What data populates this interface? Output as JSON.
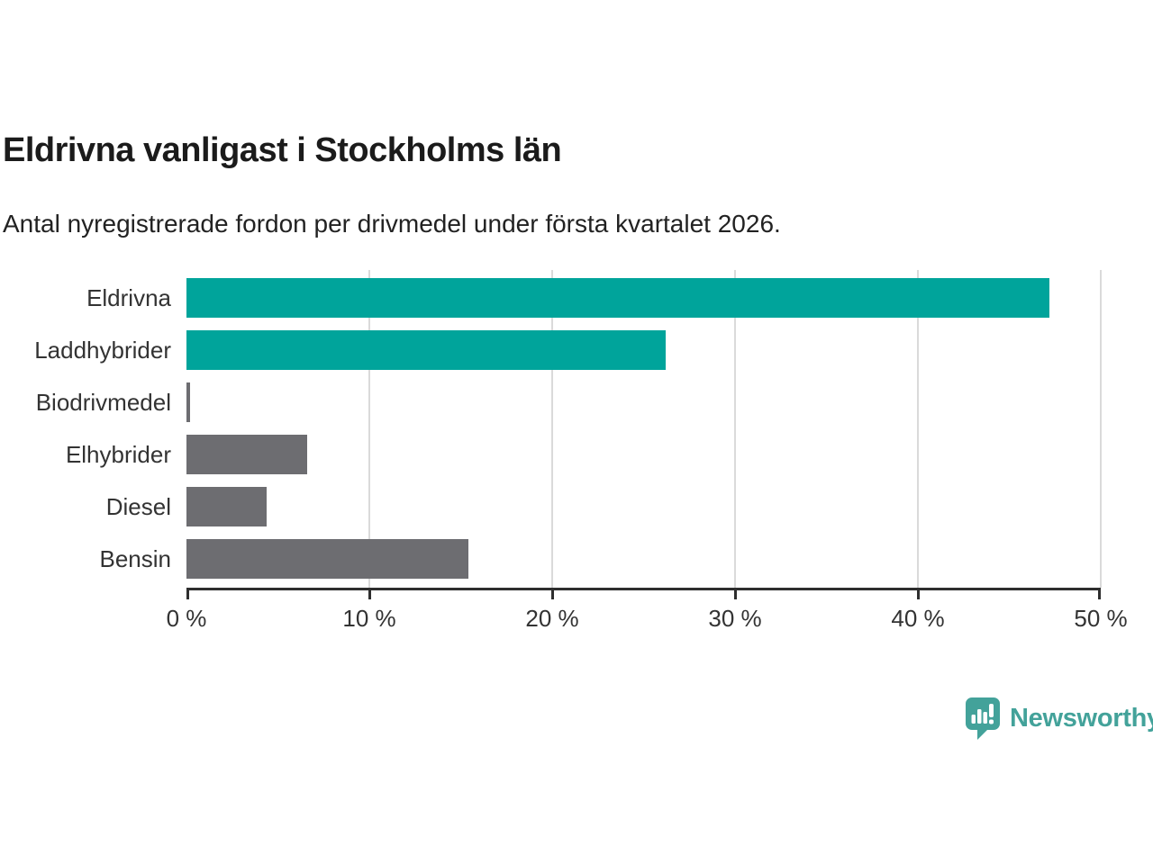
{
  "header": {
    "title": "Eldrivna vanligast i Stockholms län",
    "subtitle": "Antal nyregistrerade fordon per drivmedel under första kvartalet 2026."
  },
  "footer": {
    "brand": "Newsworthy",
    "logo_icon": "newsworthy-speech-bubble-bar-chart-icon"
  },
  "colors": {
    "highlight": "#00A49B",
    "default": "#6D6D71",
    "gridline": "#DADADA",
    "axis": "#2E2E2E",
    "text": "#333333",
    "brand": "#43A29A"
  },
  "chart_data": {
    "type": "bar",
    "orientation": "horizontal",
    "title": "Eldrivna vanligast i Stockholms län",
    "subtitle": "Antal nyregistrerade fordon per drivmedel under första kvartalet 2026.",
    "categories": [
      "Eldrivna",
      "Laddhybrider",
      "Biodrivmedel",
      "Elhybrider",
      "Diesel",
      "Bensin"
    ],
    "values": [
      47.2,
      26.2,
      0.2,
      6.6,
      4.4,
      15.4
    ],
    "unit": "%",
    "bar_color_keys": [
      "highlight",
      "highlight",
      "default",
      "default",
      "default",
      "default"
    ],
    "x_axis": {
      "min": 0,
      "max": 50,
      "ticks": [
        0,
        10,
        20,
        30,
        40,
        50
      ],
      "tick_labels": [
        "0 %",
        "10 %",
        "20 %",
        "30 %",
        "40 %",
        "50 %"
      ]
    },
    "xlabel": "",
    "ylabel": "",
    "grid": "vertical",
    "legend": "none"
  }
}
